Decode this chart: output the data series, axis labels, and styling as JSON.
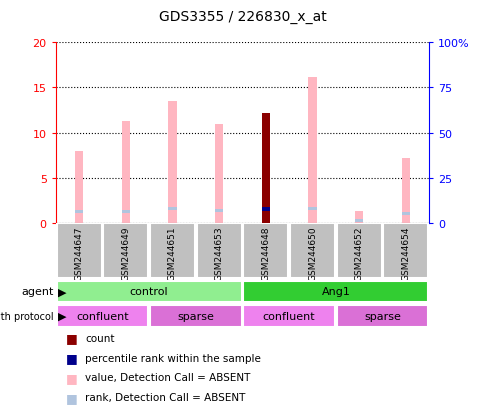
{
  "title": "GDS3355 / 226830_x_at",
  "samples": [
    "GSM244647",
    "GSM244649",
    "GSM244651",
    "GSM244653",
    "GSM244648",
    "GSM244650",
    "GSM244652",
    "GSM244654"
  ],
  "value_absent": [
    8.0,
    11.3,
    13.5,
    11.0,
    12.2,
    16.2,
    1.3,
    7.2
  ],
  "rank_absent": [
    6.2,
    6.0,
    8.0,
    6.5,
    null,
    8.0,
    null,
    5.2
  ],
  "rank_absent_gsm652": 1.1,
  "count_present": [
    null,
    null,
    null,
    null,
    12.2,
    null,
    null,
    null
  ],
  "rank_present": [
    null,
    null,
    null,
    null,
    7.5,
    null,
    null,
    null
  ],
  "ylim_left": [
    0,
    20
  ],
  "ylim_right": [
    0,
    100
  ],
  "yticks_left": [
    0,
    5,
    10,
    15,
    20
  ],
  "yticks_right": [
    0,
    25,
    50,
    75,
    100
  ],
  "ytick_labels_right": [
    "0",
    "25",
    "50",
    "75",
    "100%"
  ],
  "agent_groups": [
    {
      "label": "control",
      "start": 0,
      "end": 4,
      "color": "#90EE90"
    },
    {
      "label": "Ang1",
      "start": 4,
      "end": 8,
      "color": "#32CD32"
    }
  ],
  "growth_groups": [
    {
      "label": "confluent",
      "start": 0,
      "end": 2,
      "color": "#EE82EE"
    },
    {
      "label": "sparse",
      "start": 2,
      "end": 4,
      "color": "#DA70D6"
    },
    {
      "label": "confluent",
      "start": 4,
      "end": 6,
      "color": "#EE82EE"
    },
    {
      "label": "sparse",
      "start": 6,
      "end": 8,
      "color": "#DA70D6"
    }
  ],
  "color_value_absent": "#FFB6C1",
  "color_rank_absent": "#B0C4DE",
  "color_count_present": "#8B0000",
  "color_rank_present": "#00008B",
  "sample_bg_color": "#C0C0C0",
  "bar_width": 0.18
}
